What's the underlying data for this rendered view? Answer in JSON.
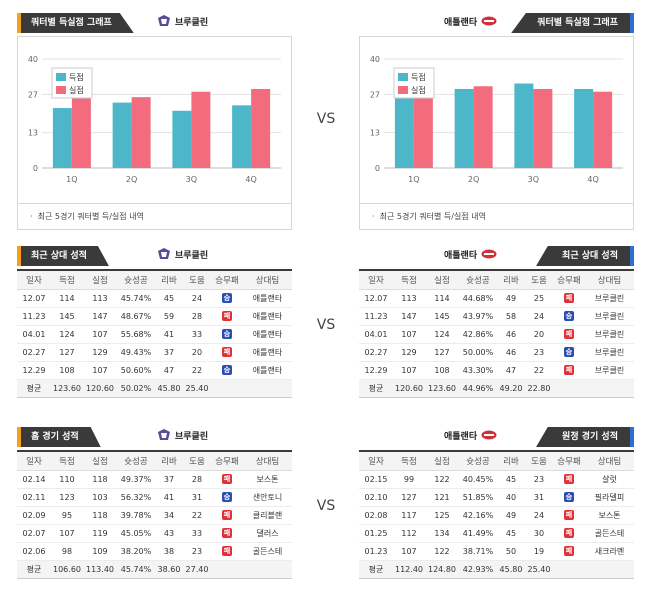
{
  "vs_label": "VS",
  "colors": {
    "score": "#4db6c9",
    "allowed": "#f26c7e",
    "win": "#2a4db8",
    "lose": "#e0303a"
  },
  "charts": {
    "title_left": "쿼터별 득실점 그래프",
    "title_right": "쿼터별 득실점 그래프",
    "team_left": "브루클린",
    "team_right": "애틀랜타",
    "note": "최근 5경기 쿼터별 득/실점 내역"
  },
  "chart_data": [
    {
      "type": "bar",
      "categories": [
        "1Q",
        "2Q",
        "3Q",
        "4Q"
      ],
      "series": [
        {
          "name": "득점",
          "values": [
            22,
            24,
            21,
            23
          ]
        },
        {
          "name": "실점",
          "values": [
            26,
            26,
            28,
            29
          ]
        }
      ],
      "yticks": [
        "0",
        "13",
        "27",
        "40"
      ],
      "ylim": [
        0,
        40
      ],
      "legend": "top-left",
      "grid": true
    },
    {
      "type": "bar",
      "categories": [
        "1Q",
        "2Q",
        "3Q",
        "4Q"
      ],
      "series": [
        {
          "name": "득점",
          "values": [
            27,
            29,
            31,
            29
          ]
        },
        {
          "name": "실점",
          "values": [
            26,
            30,
            29,
            28
          ]
        }
      ],
      "yticks": [
        "0",
        "13",
        "27",
        "40"
      ],
      "ylim": [
        0,
        40
      ],
      "legend": "top-left",
      "grid": true
    }
  ],
  "headers": [
    "일자",
    "득점",
    "실점",
    "슛성공",
    "리바",
    "도움",
    "승무패",
    "상대팀"
  ],
  "recent": {
    "title_left": "최근 상대 성적",
    "title_right": "최근 상대 성적",
    "team_left": "브루클린",
    "team_right": "애틀랜타",
    "left_rows": [
      [
        "12.07",
        "114",
        "113",
        "45.74%",
        "45",
        "24",
        "승",
        "애틀랜타"
      ],
      [
        "11.23",
        "145",
        "147",
        "48.67%",
        "59",
        "28",
        "패",
        "애틀랜타"
      ],
      [
        "04.01",
        "124",
        "107",
        "55.68%",
        "41",
        "33",
        "승",
        "애틀랜타"
      ],
      [
        "02.27",
        "127",
        "129",
        "49.43%",
        "37",
        "20",
        "패",
        "애틀랜타"
      ],
      [
        "12.29",
        "108",
        "107",
        "50.60%",
        "47",
        "22",
        "승",
        "애틀랜타"
      ]
    ],
    "left_avg": [
      "평균",
      "123.60",
      "120.60",
      "50.02%",
      "45.80",
      "25.40",
      "",
      ""
    ],
    "right_rows": [
      [
        "12.07",
        "113",
        "114",
        "44.68%",
        "49",
        "25",
        "패",
        "브루클린"
      ],
      [
        "11.23",
        "147",
        "145",
        "43.97%",
        "58",
        "24",
        "승",
        "브루클린"
      ],
      [
        "04.01",
        "107",
        "124",
        "42.86%",
        "46",
        "20",
        "패",
        "브루클린"
      ],
      [
        "02.27",
        "129",
        "127",
        "50.00%",
        "46",
        "23",
        "승",
        "브루클린"
      ],
      [
        "12.29",
        "107",
        "108",
        "43.30%",
        "47",
        "22",
        "패",
        "브루클린"
      ]
    ],
    "right_avg": [
      "평균",
      "120.60",
      "123.60",
      "44.96%",
      "49.20",
      "22.80",
      "",
      ""
    ]
  },
  "split": {
    "title_left": "홈 경기 성적",
    "title_right": "원정 경기 성적",
    "team_left": "브루클린",
    "team_right": "애틀랜타",
    "left_rows": [
      [
        "02.14",
        "110",
        "118",
        "49.37%",
        "37",
        "28",
        "패",
        "보스톤"
      ],
      [
        "02.11",
        "123",
        "103",
        "56.32%",
        "41",
        "31",
        "승",
        "샌안토니"
      ],
      [
        "02.09",
        "95",
        "118",
        "39.78%",
        "34",
        "22",
        "패",
        "클리블랜"
      ],
      [
        "02.07",
        "107",
        "119",
        "45.05%",
        "43",
        "33",
        "패",
        "댈러스"
      ],
      [
        "02.06",
        "98",
        "109",
        "38.20%",
        "38",
        "23",
        "패",
        "골든스테"
      ]
    ],
    "left_avg": [
      "평균",
      "106.60",
      "113.40",
      "45.74%",
      "38.60",
      "27.40",
      "",
      ""
    ],
    "right_rows": [
      [
        "02.15",
        "99",
        "122",
        "40.45%",
        "45",
        "23",
        "패",
        "샬럿"
      ],
      [
        "02.10",
        "127",
        "121",
        "51.85%",
        "40",
        "31",
        "승",
        "필라델피"
      ],
      [
        "02.08",
        "117",
        "125",
        "42.16%",
        "49",
        "24",
        "패",
        "보스톤"
      ],
      [
        "01.25",
        "112",
        "134",
        "41.49%",
        "45",
        "30",
        "패",
        "골든스테"
      ],
      [
        "01.23",
        "107",
        "122",
        "38.71%",
        "50",
        "19",
        "패",
        "새크라멘"
      ]
    ],
    "right_avg": [
      "평균",
      "112.40",
      "124.80",
      "42.93%",
      "45.80",
      "25.40",
      "",
      ""
    ]
  }
}
